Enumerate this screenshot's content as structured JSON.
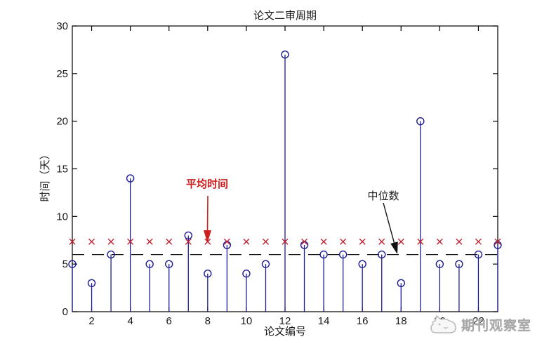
{
  "figure": {
    "title": "论文二审周期",
    "xlabel": "论文编号",
    "ylabel": "时间（天）"
  },
  "annotations": {
    "mean_label": "平均时间",
    "median_label": "中位数"
  },
  "watermark": {
    "text": "期刊观察室"
  },
  "colors": {
    "stem": "#1c1c94",
    "mean_marker": "#c22433",
    "median_line": "#111111",
    "mean_annotation": "#cc2020",
    "median_annotation": "#111111",
    "axis": "#000000",
    "tick_label": "#1a1a1a",
    "watermark": "#a7a7a7"
  },
  "chart_data": {
    "type": "scatter",
    "variant": "stem",
    "title": "论文二审周期",
    "xlabel": "论文编号",
    "ylabel": "时间（天）",
    "x": [
      1,
      2,
      3,
      4,
      5,
      6,
      7,
      8,
      9,
      10,
      11,
      12,
      13,
      14,
      15,
      16,
      17,
      18,
      19,
      20,
      21,
      22,
      23
    ],
    "values": [
      5,
      3,
      6,
      14,
      5,
      5,
      8,
      4,
      7,
      4,
      5,
      27,
      7,
      6,
      6,
      5,
      6,
      3,
      20,
      5,
      5,
      6,
      7
    ],
    "mean": 7.35,
    "median": 6,
    "xlim": [
      1,
      23
    ],
    "ylim": [
      0,
      30
    ],
    "xticks": [
      2,
      4,
      6,
      8,
      10,
      12,
      14,
      16,
      18,
      20,
      22
    ],
    "yticks": [
      0,
      5,
      10,
      15,
      20,
      25,
      30
    ],
    "grid": false,
    "legend": "none",
    "series_notes": [
      {
        "name": "二审周期",
        "marker": "open circle on stem",
        "color": "dark blue"
      },
      {
        "name": "平均时间",
        "marker": "red x at y=7.35 for every x",
        "color": "red"
      },
      {
        "name": "中位数",
        "marker": "black dashed horizontal line at y=6",
        "color": "black"
      }
    ]
  }
}
